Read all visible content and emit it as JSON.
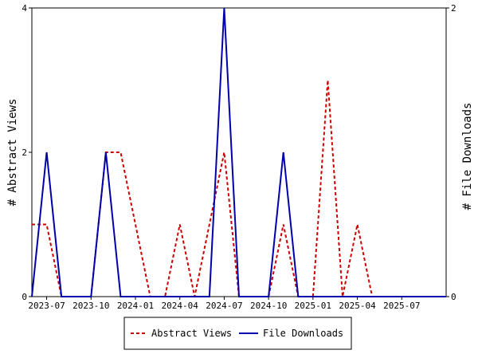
{
  "chart_data": {
    "type": "line",
    "x": [
      "2023-06",
      "2023-07",
      "2023-08",
      "2023-09",
      "2023-10",
      "2023-11",
      "2023-12",
      "2024-01",
      "2024-02",
      "2024-03",
      "2024-04",
      "2024-05",
      "2024-06",
      "2024-07",
      "2024-08",
      "2024-09",
      "2024-10",
      "2024-11",
      "2024-12",
      "2025-01",
      "2025-02",
      "2025-03",
      "2025-04",
      "2025-05",
      "2025-06",
      "2025-07",
      "2025-08",
      "2025-09",
      "2025-10"
    ],
    "x_ticks": [
      "2023-07",
      "2023-10",
      "2024-01",
      "2024-04",
      "2024-07",
      "2024-10",
      "2025-01",
      "2025-04",
      "2025-07"
    ],
    "series": [
      {
        "name": "Abstract Views",
        "axis": "left",
        "color": "#cc0000",
        "dash": "dashed",
        "values": [
          1,
          1,
          0,
          0,
          0,
          2,
          2,
          1,
          0,
          0,
          1,
          0,
          1,
          2,
          0,
          0,
          0,
          1,
          0,
          0,
          3,
          0,
          1,
          0,
          0,
          0,
          0,
          0,
          0
        ]
      },
      {
        "name": "File Downloads",
        "axis": "right",
        "color": "#0000aa",
        "dash": "solid",
        "values": [
          0,
          1,
          0,
          0,
          0,
          1,
          0,
          0,
          0,
          0,
          0,
          0,
          0,
          2,
          0,
          0,
          0,
          1,
          0,
          0,
          0,
          0,
          0,
          0,
          0,
          0,
          0,
          0,
          0
        ]
      }
    ],
    "y_left": {
      "label": "# Abstract Views",
      "ylim": [
        0,
        4
      ],
      "ticks": [
        "0",
        "2",
        "4"
      ]
    },
    "y_right": {
      "label": "# File Downloads",
      "ylim": [
        0,
        2
      ],
      "ticks": [
        "0",
        "2"
      ]
    },
    "grid": false,
    "legend_position": "bottom-center",
    "colors": {
      "axis": "#000000",
      "background": "#ffffff"
    }
  }
}
